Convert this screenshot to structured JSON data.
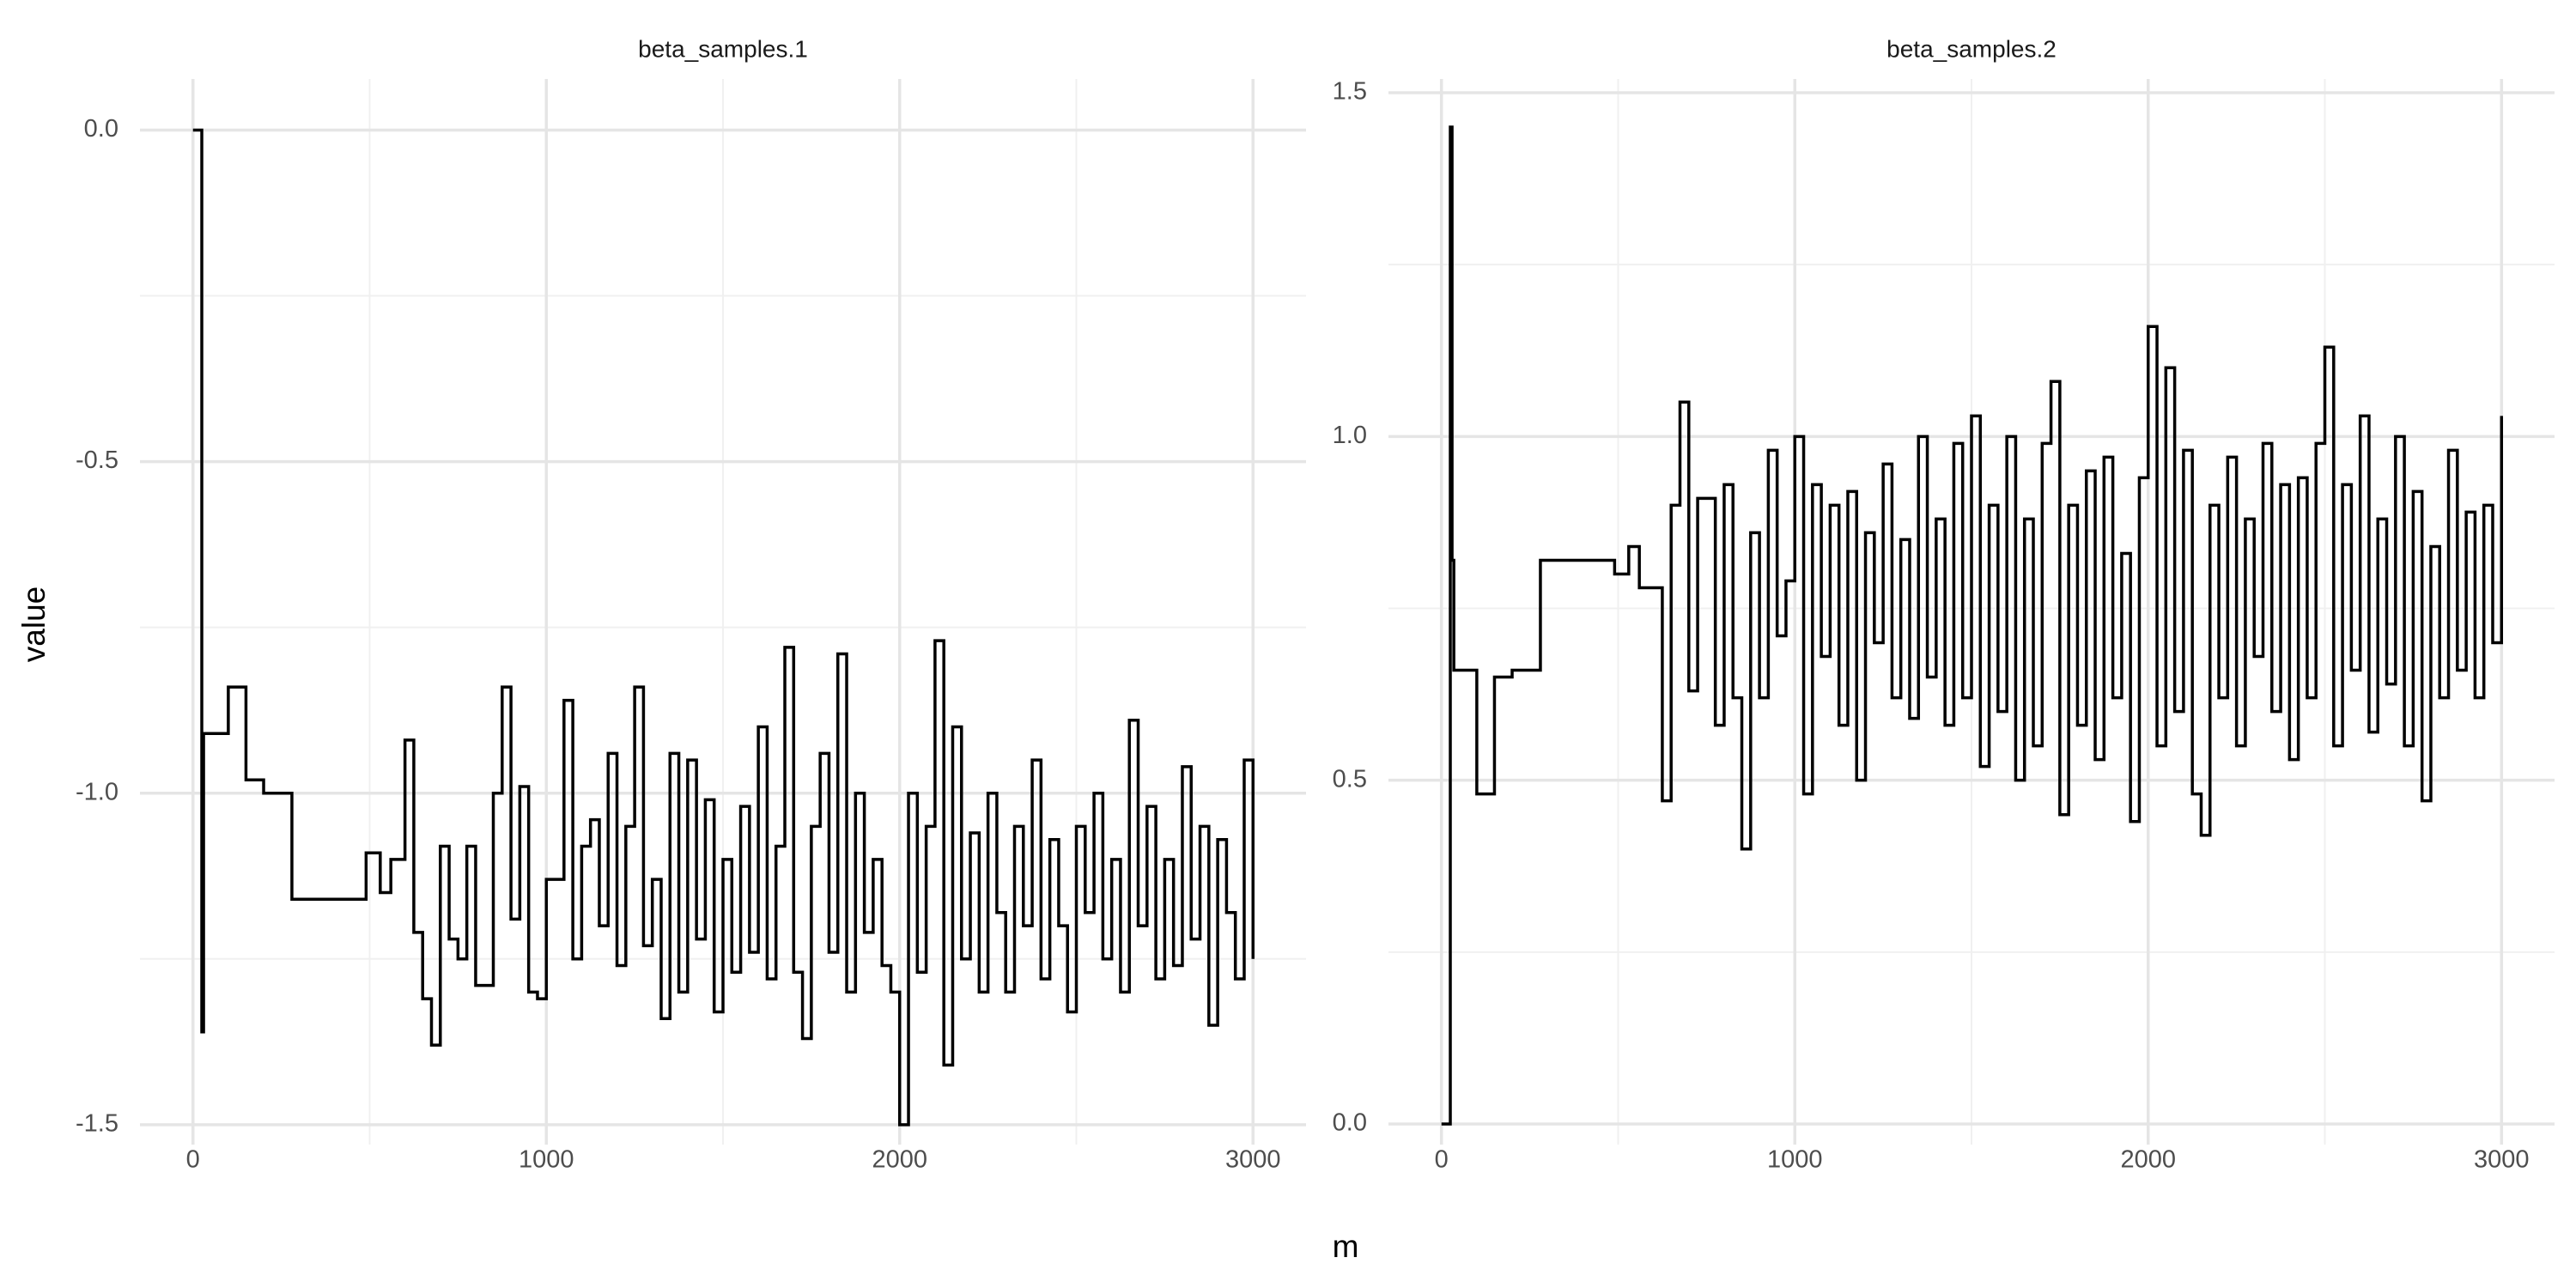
{
  "xlabel": "m",
  "ylabel": "value",
  "chart_data": [
    {
      "type": "line",
      "title": "beta_samples.1",
      "step": "hv",
      "color": "#000000",
      "grid": true,
      "xlim": [
        -150,
        3150
      ],
      "ylim": [
        -1.53,
        0.077
      ],
      "xticks": [
        0,
        1000,
        2000,
        3000
      ],
      "minor_xticks": [
        500,
        1500,
        2500
      ],
      "yticks": [
        -1.5,
        {
          "value": -1,
          "label": "-1.0"
        },
        -0.5,
        {
          "value": 0,
          "label": "0.0"
        }
      ],
      "minor_yticks": [
        -1.25,
        -0.75,
        -0.25
      ],
      "x": [
        0,
        25,
        30,
        35,
        100,
        150,
        200,
        280,
        490,
        530,
        560,
        600,
        625,
        650,
        675,
        700,
        725,
        750,
        775,
        800,
        825,
        850,
        875,
        900,
        925,
        950,
        975,
        1000,
        1025,
        1050,
        1075,
        1100,
        1125,
        1150,
        1175,
        1200,
        1225,
        1250,
        1275,
        1300,
        1325,
        1350,
        1375,
        1400,
        1425,
        1450,
        1475,
        1500,
        1525,
        1550,
        1575,
        1600,
        1625,
        1650,
        1675,
        1700,
        1725,
        1750,
        1775,
        1800,
        1825,
        1850,
        1875,
        1900,
        1925,
        1950,
        1975,
        2000,
        2025,
        2050,
        2075,
        2100,
        2125,
        2150,
        2175,
        2200,
        2225,
        2250,
        2275,
        2300,
        2325,
        2350,
        2375,
        2400,
        2425,
        2450,
        2475,
        2500,
        2525,
        2550,
        2575,
        2600,
        2625,
        2650,
        2675,
        2700,
        2725,
        2750,
        2775,
        2800,
        2825,
        2850,
        2875,
        2900,
        2925,
        2950,
        2975,
        3000
      ],
      "values": [
        0,
        -1.36,
        -0.91,
        -0.91,
        -0.84,
        -0.98,
        -1.0,
        -1.16,
        -1.09,
        -1.15,
        -1.1,
        -0.92,
        -1.21,
        -1.31,
        -1.38,
        -1.08,
        -1.22,
        -1.25,
        -1.08,
        -1.29,
        -1.29,
        -1.0,
        -0.84,
        -1.19,
        -0.99,
        -1.3,
        -1.31,
        -1.13,
        -1.13,
        -0.86,
        -1.25,
        -1.08,
        -1.04,
        -1.2,
        -0.94,
        -1.26,
        -1.05,
        -0.84,
        -1.23,
        -1.13,
        -1.34,
        -0.94,
        -1.3,
        -0.95,
        -1.22,
        -1.01,
        -1.33,
        -1.1,
        -1.27,
        -1.02,
        -1.24,
        -0.9,
        -1.28,
        -1.08,
        -0.78,
        -1.27,
        -1.37,
        -1.05,
        -0.94,
        -1.24,
        -0.79,
        -1.3,
        -1.0,
        -1.21,
        -1.1,
        -1.26,
        -1.3,
        -1.5,
        -1.0,
        -1.27,
        -1.05,
        -0.77,
        -1.41,
        -0.9,
        -1.25,
        -1.06,
        -1.3,
        -1.0,
        -1.18,
        -1.3,
        -1.05,
        -1.2,
        -0.95,
        -1.28,
        -1.07,
        -1.2,
        -1.33,
        -1.05,
        -1.18,
        -1.0,
        -1.25,
        -1.1,
        -1.3,
        -0.89,
        -1.2,
        -1.02,
        -1.28,
        -1.1,
        -1.26,
        -0.96,
        -1.22,
        -1.05,
        -1.35,
        -1.07,
        -1.18,
        -1.28,
        -0.95,
        -1.25
      ]
    },
    {
      "type": "line",
      "title": "beta_samples.2",
      "step": "hv",
      "color": "#000000",
      "grid": true,
      "xlim": [
        -150,
        3150
      ],
      "ylim": [
        -0.03,
        1.52
      ],
      "xticks": [
        0,
        1000,
        2000,
        3000
      ],
      "minor_xticks": [
        500,
        1500,
        2500
      ],
      "yticks": [
        {
          "value": 0,
          "label": "0.0"
        },
        0.5,
        {
          "value": 1,
          "label": "1.0"
        },
        1.5
      ],
      "minor_yticks": [
        0.25,
        0.75,
        1.25
      ],
      "x": [
        0,
        25,
        30,
        35,
        100,
        150,
        200,
        280,
        490,
        530,
        560,
        600,
        625,
        650,
        675,
        700,
        725,
        750,
        775,
        800,
        825,
        850,
        875,
        900,
        925,
        950,
        975,
        1000,
        1025,
        1050,
        1075,
        1100,
        1125,
        1150,
        1175,
        1200,
        1225,
        1250,
        1275,
        1300,
        1325,
        1350,
        1375,
        1400,
        1425,
        1450,
        1475,
        1500,
        1525,
        1550,
        1575,
        1600,
        1625,
        1650,
        1675,
        1700,
        1725,
        1750,
        1775,
        1800,
        1825,
        1850,
        1875,
        1900,
        1925,
        1950,
        1975,
        2000,
        2025,
        2050,
        2075,
        2100,
        2125,
        2150,
        2175,
        2200,
        2225,
        2250,
        2275,
        2300,
        2325,
        2350,
        2375,
        2400,
        2425,
        2450,
        2475,
        2500,
        2525,
        2550,
        2575,
        2600,
        2625,
        2650,
        2675,
        2700,
        2725,
        2750,
        2775,
        2800,
        2825,
        2850,
        2875,
        2900,
        2925,
        2950,
        2975,
        3000
      ],
      "values": [
        0,
        1.45,
        0.82,
        0.66,
        0.48,
        0.65,
        0.66,
        0.82,
        0.8,
        0.84,
        0.78,
        0.78,
        0.47,
        0.9,
        1.05,
        0.63,
        0.91,
        0.91,
        0.58,
        0.93,
        0.62,
        0.4,
        0.86,
        0.62,
        0.98,
        0.71,
        0.79,
        1.0,
        0.48,
        0.93,
        0.68,
        0.9,
        0.58,
        0.92,
        0.5,
        0.86,
        0.7,
        0.96,
        0.62,
        0.85,
        0.59,
        1.0,
        0.65,
        0.88,
        0.58,
        0.99,
        0.62,
        1.03,
        0.52,
        0.9,
        0.6,
        1.0,
        0.5,
        0.88,
        0.55,
        0.99,
        1.08,
        0.45,
        0.9,
        0.58,
        0.95,
        0.53,
        0.97,
        0.62,
        0.83,
        0.44,
        0.94,
        1.16,
        0.55,
        1.1,
        0.6,
        0.98,
        0.48,
        0.42,
        0.9,
        0.62,
        0.97,
        0.55,
        0.88,
        0.68,
        0.99,
        0.6,
        0.93,
        0.53,
        0.94,
        0.62,
        0.99,
        1.13,
        0.55,
        0.93,
        0.66,
        1.03,
        0.57,
        0.88,
        0.64,
        1.0,
        0.55,
        0.92,
        0.47,
        0.84,
        0.62,
        0.98,
        0.66,
        0.89,
        0.62,
        0.9,
        0.7,
        1.03
      ]
    }
  ]
}
